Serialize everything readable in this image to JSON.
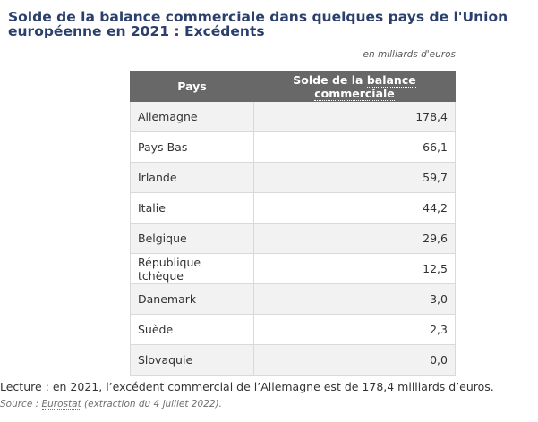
{
  "title": "Solde de la balance commerciale dans quelques pays de l'Union européenne en 2021 : Excédents",
  "unit": "en milliards d'euros",
  "table": {
    "headers": [
      "Pays",
      "Solde de la",
      "balance commerciale"
    ],
    "rows": [
      {
        "country": "Allemagne",
        "value": "178,4"
      },
      {
        "country": "Pays-Bas",
        "value": "66,1"
      },
      {
        "country": "Irlande",
        "value": "59,7"
      },
      {
        "country": "Italie",
        "value": "44,2"
      },
      {
        "country": "Belgique",
        "value": "29,6"
      },
      {
        "country": "République tchèque",
        "value": "12,5"
      },
      {
        "country": "Danemark",
        "value": "3,0"
      },
      {
        "country": "Suède",
        "value": "2,3"
      },
      {
        "country": "Slovaquie",
        "value": "0,0"
      }
    ]
  },
  "reading_note": "Lecture : en 2021, l’excédent commercial de l’Allemagne est de 178,4 milliards d’euros.",
  "source": {
    "prefix": "Source : ",
    "link": "Eurostat",
    "suffix": " (extraction du 4 juillet 2022)."
  },
  "colors": {
    "title": "#2b3f6c",
    "header_bg": "#686868",
    "row_alt": "#f2f2f2"
  }
}
